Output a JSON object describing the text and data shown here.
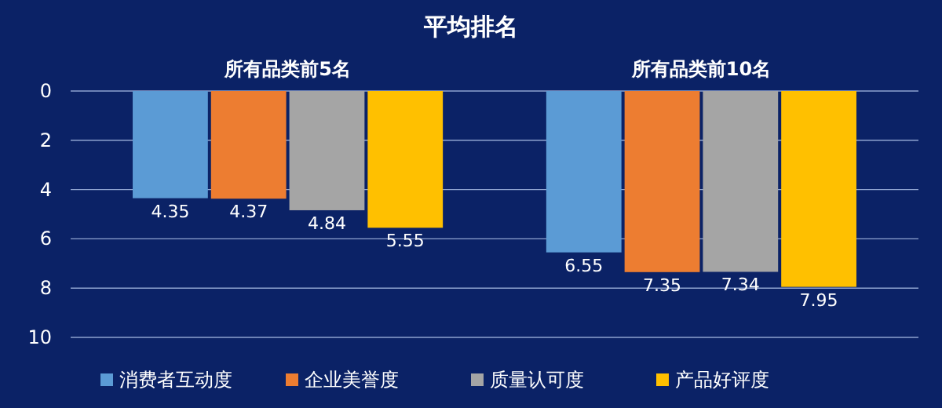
{
  "chart_data": {
    "type": "bar",
    "title": "平均排名",
    "categories": [
      "所有品类前5名",
      "所有品类前10名"
    ],
    "series": [
      {
        "name": "消费者互动度",
        "color": "#5b9bd5",
        "values": [
          4.35,
          6.55
        ]
      },
      {
        "name": "企业美誉度",
        "color": "#ed7d31",
        "values": [
          4.37,
          7.35
        ]
      },
      {
        "name": "质量认可度",
        "color": "#a5a5a5",
        "values": [
          4.84,
          7.34
        ]
      },
      {
        "name": "产品好评度",
        "color": "#ffc000",
        "values": [
          5.55,
          7.95
        ]
      }
    ],
    "ylim": [
      10,
      0
    ],
    "yticks": [
      0,
      2,
      4,
      6,
      8,
      10
    ],
    "grid": "y",
    "legend": "bottom",
    "data_labels": true
  }
}
